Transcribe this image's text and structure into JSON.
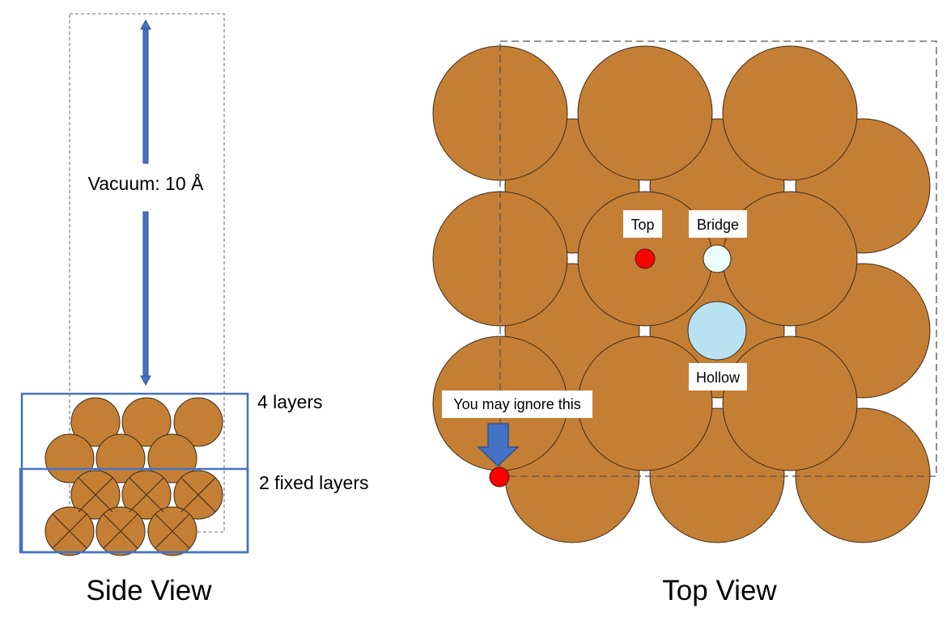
{
  "side_view": {
    "title": "Side View",
    "vacuum_label": "Vacuum: 10 Å",
    "layers_label": "4 layers",
    "fixed_label": "2 fixed layers",
    "layers_count": 4,
    "fixed_layers_count": 2
  },
  "top_view": {
    "title": "Top View",
    "sites": {
      "top": "Top",
      "bridge": "Bridge",
      "hollow": "Hollow"
    },
    "note": "You may ignore this"
  },
  "colors": {
    "atom": "#c47f35",
    "atom_stroke": "#3a2a18",
    "box_blue": "#4472c4",
    "arrow_blue": "#4472c4",
    "arrow_stroke": "#2f528f",
    "top_site": "#ff0000",
    "bridge_site": "#ecffff",
    "hollow_site": "#b8e2f2",
    "dashed": "#8a8a8a"
  }
}
